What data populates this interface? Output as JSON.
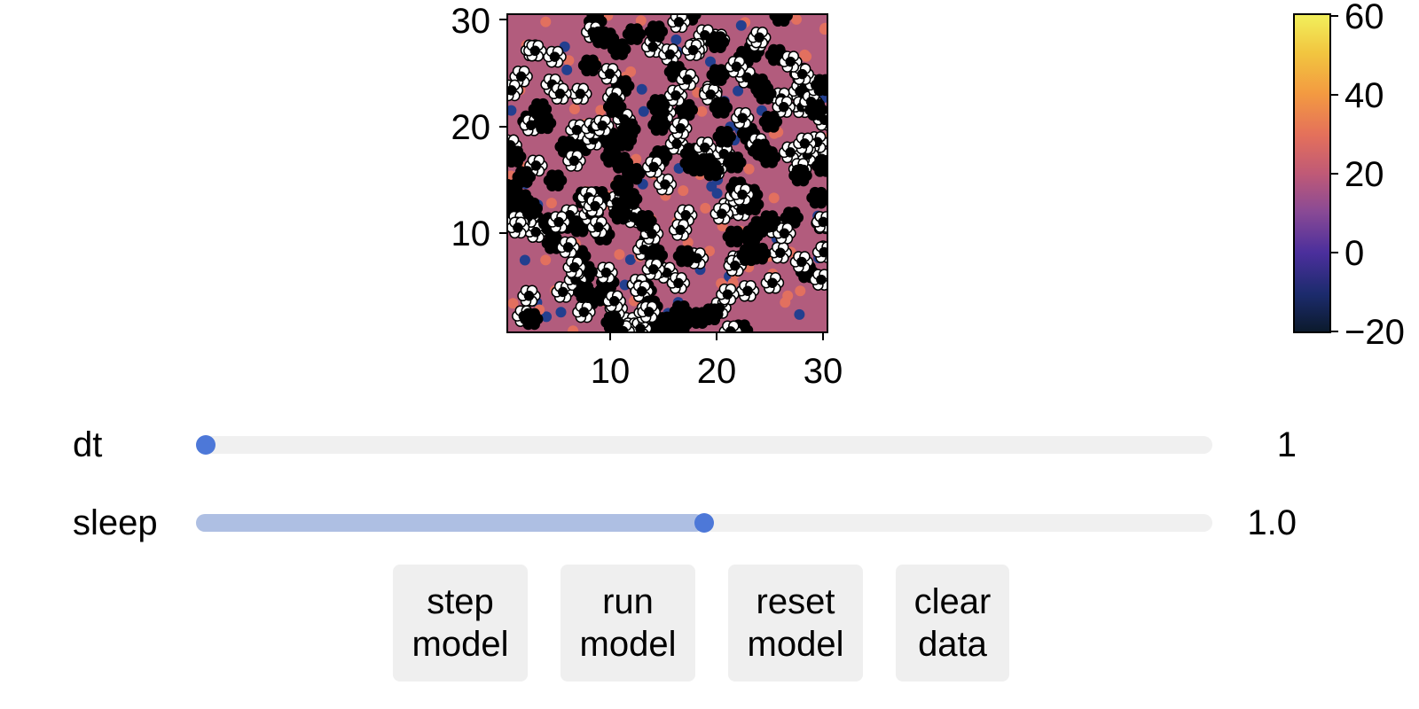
{
  "heatmap": {
    "x_ticks": [
      "10",
      "20",
      "30"
    ],
    "y_ticks": [
      "10",
      "20",
      "30"
    ],
    "grid_size": 30,
    "background_color": "#b25c7d"
  },
  "colorbar": {
    "ticks": [
      "60",
      "40",
      "20",
      "0",
      "−20"
    ],
    "range": [
      -20,
      60
    ],
    "colormap": [
      "#0b1a2b",
      "#1c2b6d",
      "#4b2f9c",
      "#8a4a95",
      "#c05a76",
      "#e4705b",
      "#f39a41",
      "#f2c640",
      "#f2f05c"
    ]
  },
  "controls": {
    "dt": {
      "label": "dt",
      "value": "1",
      "fraction": 0.0
    },
    "sleep": {
      "label": "sleep",
      "value": "1.0",
      "fraction": 0.5
    }
  },
  "buttons": {
    "step": {
      "line1": "step",
      "line2": "model"
    },
    "run": {
      "line1": "run",
      "line2": "model"
    },
    "reset": {
      "line1": "reset",
      "line2": "model"
    },
    "clear": {
      "line1": "clear",
      "line2": "data"
    }
  },
  "agent_colors": {
    "white": "#ffffff",
    "black": "#000000",
    "salmon": "#e2705f",
    "navy": "#233f8f"
  }
}
